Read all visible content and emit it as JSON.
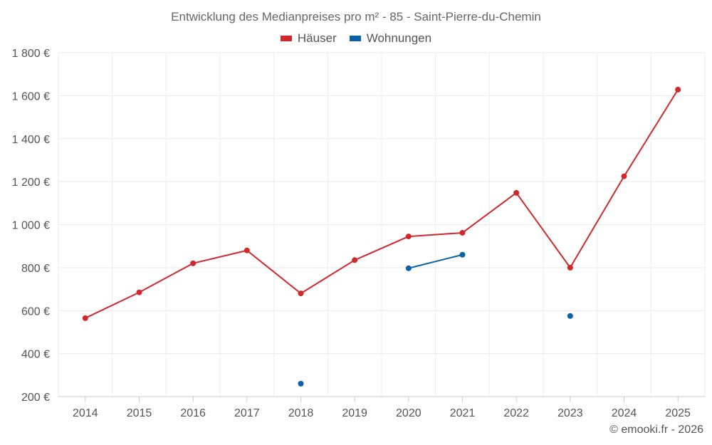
{
  "chart_data": {
    "type": "line",
    "title": "Entwicklung des Medianpreises pro m² - 85 - Saint-Pierre-du-Chemin",
    "categories": [
      "2014",
      "2015",
      "2016",
      "2017",
      "2018",
      "2019",
      "2020",
      "2021",
      "2022",
      "2023",
      "2024",
      "2025"
    ],
    "y_ticks": [
      200,
      400,
      600,
      800,
      1000,
      1200,
      1400,
      1600,
      1800
    ],
    "y_tick_labels": [
      "200 €",
      "400 €",
      "600 €",
      "800 €",
      "1 000 €",
      "1 200 €",
      "1 400 €",
      "1 600 €",
      "1 800 €"
    ],
    "ylim": [
      200,
      1800
    ],
    "grid": true,
    "legend_position": "top-center",
    "series": [
      {
        "name": "Häuser",
        "color": "#d0282c",
        "values": [
          565,
          685,
          820,
          880,
          680,
          835,
          945,
          962,
          1148,
          800,
          1225,
          1628
        ]
      },
      {
        "name": "Wohnungen",
        "color": "#0a63a5",
        "values": [
          null,
          null,
          null,
          null,
          260,
          null,
          797,
          860,
          null,
          575,
          null,
          null
        ]
      }
    ]
  },
  "legend": {
    "series1_label": "Häuser",
    "series2_label": "Wohnungen"
  },
  "credit": "© emooki.fr - 2026"
}
